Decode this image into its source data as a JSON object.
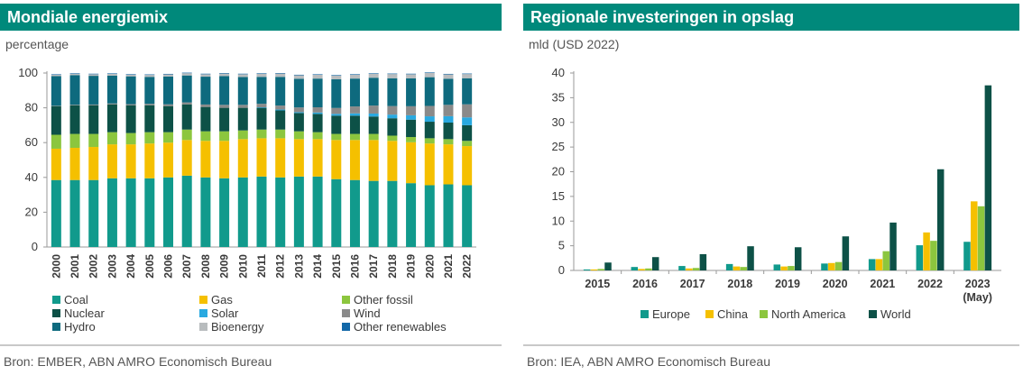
{
  "left": {
    "title": "Mondiale energiemix",
    "unit": "percentage",
    "source": "Bron: EMBER, ABN AMRO Economisch Bureau"
  },
  "right": {
    "title": "Regionale investeringen in opslag",
    "unit": "mld (USD 2022)",
    "source": "Bron: IEA, ABN AMRO Economisch Bureau"
  },
  "chart_data": [
    {
      "type": "bar",
      "stacked": true,
      "title": "Mondiale energiemix",
      "ylabel": "percentage",
      "ylim": [
        0,
        100
      ],
      "yticks": [
        0,
        20,
        40,
        60,
        80,
        100
      ],
      "grid": false,
      "legend_position": "bottom",
      "categories": [
        "2000",
        "2001",
        "2002",
        "2003",
        "2004",
        "2005",
        "2006",
        "2007",
        "2008",
        "2009",
        "2010",
        "2011",
        "2012",
        "2013",
        "2014",
        "2015",
        "2016",
        "2017",
        "2018",
        "2019",
        "2020",
        "2021",
        "2022"
      ],
      "series": [
        {
          "name": "Coal",
          "color": "#119a8c",
          "values": [
            38.5,
            38.5,
            38.5,
            39.5,
            39.5,
            39.5,
            40,
            41,
            40,
            39.5,
            40,
            40.5,
            40,
            40.5,
            40.5,
            39,
            38.5,
            38,
            38,
            36.7,
            35.5,
            36,
            35.5
          ]
        },
        {
          "name": "Gas",
          "color": "#f5c000",
          "values": [
            18,
            18.5,
            19,
            19.5,
            19.5,
            20,
            20,
            20.5,
            21,
            21.5,
            22,
            22,
            22.5,
            21.5,
            21.5,
            22.5,
            23,
            23.5,
            23,
            23.5,
            24,
            23,
            22.5
          ]
        },
        {
          "name": "Other fossil",
          "color": "#8cc63e",
          "values": [
            8,
            8,
            7.5,
            7,
            6.5,
            6.5,
            6,
            6,
            5.5,
            5.5,
            5,
            5,
            5,
            4.5,
            4,
            3.5,
            3.5,
            3.5,
            3,
            3,
            3,
            3,
            3
          ]
        },
        {
          "name": "Nuclear",
          "color": "#0d5147",
          "values": [
            16.5,
            16.5,
            16.5,
            16,
            16,
            15.5,
            15,
            14.5,
            14,
            13.5,
            13,
            12.5,
            11,
            10.5,
            10.5,
            10.5,
            10.5,
            10,
            10,
            10,
            9.5,
            9.5,
            9
          ]
        },
        {
          "name": "Solar",
          "color": "#29a9e0",
          "values": [
            0,
            0,
            0,
            0,
            0,
            0,
            0,
            0,
            0,
            0,
            0,
            0.3,
            0.5,
            0.5,
            0.8,
            1,
            1.3,
            1.7,
            2.1,
            2.5,
            3.1,
            3.7,
            4.5
          ]
        },
        {
          "name": "Wind",
          "color": "#8a8a8a",
          "values": [
            0.2,
            0.3,
            0.4,
            0.5,
            0.6,
            0.8,
            1,
            1.1,
            1.4,
            1.7,
            1.7,
            2,
            2.3,
            2.7,
            3,
            3.4,
            4,
            4.6,
            4.9,
            5.2,
            6,
            6.5,
            7.5
          ]
        },
        {
          "name": "Hydro",
          "color": "#0e6a7e",
          "values": [
            17,
            17,
            16.5,
            16,
            16,
            15.5,
            16,
            15.5,
            16,
            16.5,
            16,
            15.5,
            16.5,
            16.5,
            16.5,
            16.5,
            16,
            16,
            16,
            16,
            16.5,
            15,
            15
          ]
        },
        {
          "name": "Bioenergy",
          "color": "#b8bcbe",
          "values": [
            0.8,
            0.8,
            0.9,
            1,
            1,
            1.1,
            1.2,
            1.3,
            1.4,
            1.5,
            1.6,
            1.8,
            1.9,
            2,
            2.2,
            2.2,
            2.3,
            2.3,
            2.4,
            2.4,
            2.5,
            2.5,
            2.4
          ]
        },
        {
          "name": "Other renewables",
          "color": "#1368a8",
          "values": [
            0.3,
            0.3,
            0.3,
            0.3,
            0.3,
            0.3,
            0.3,
            0.3,
            0.3,
            0.3,
            0.3,
            0.3,
            0.3,
            0.3,
            0.3,
            0.3,
            0.3,
            0.3,
            0.3,
            0.3,
            0.3,
            0.3,
            0.3
          ]
        }
      ]
    },
    {
      "type": "bar",
      "title": "Regionale investeringen in opslag",
      "ylabel": "mld (USD 2022)",
      "ylim": [
        0,
        40
      ],
      "yticks": [
        0,
        5,
        10,
        15,
        20,
        25,
        30,
        35,
        40
      ],
      "grid": false,
      "legend_position": "bottom",
      "categories": [
        "2015",
        "2016",
        "2017",
        "2018",
        "2019",
        "2020",
        "2021",
        "2022",
        "2023\n(May)"
      ],
      "series": [
        {
          "name": "Europe",
          "color": "#119a8c",
          "values": [
            0.2,
            0.7,
            0.9,
            1.3,
            1.2,
            1.4,
            2.3,
            5.1,
            5.8
          ]
        },
        {
          "name": "China",
          "color": "#f5c000",
          "values": [
            0.2,
            0.3,
            0.4,
            0.8,
            0.8,
            1.5,
            2.3,
            7.7,
            14
          ]
        },
        {
          "name": "North America",
          "color": "#8cc63e",
          "values": [
            0.3,
            0.4,
            0.5,
            0.7,
            0.9,
            1.7,
            3.9,
            6,
            13
          ]
        },
        {
          "name": "World",
          "color": "#0d5147",
          "values": [
            1.6,
            2.7,
            3.3,
            4.9,
            4.7,
            6.9,
            9.7,
            20.5,
            37.5
          ]
        }
      ]
    }
  ]
}
